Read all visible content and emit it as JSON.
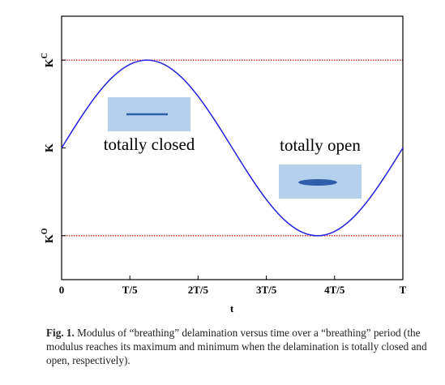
{
  "chart_data": {
    "type": "line",
    "x_label": "t",
    "x": [
      0,
      0.05,
      0.1,
      0.15,
      0.2,
      0.25,
      0.3,
      0.35,
      0.4,
      0.45,
      0.5,
      0.55,
      0.6,
      0.65,
      0.7,
      0.75,
      0.8,
      0.85,
      0.9,
      0.95,
      1
    ],
    "series": [
      {
        "color": "#2222dd",
        "values": [
          0,
          0.309,
          0.588,
          0.809,
          0.951,
          1,
          0.951,
          0.809,
          0.588,
          0.309,
          0,
          -0.309,
          -0.588,
          -0.809,
          -0.951,
          -1,
          -0.951,
          -0.809,
          -0.588,
          -0.309,
          0
        ]
      }
    ],
    "xlim": [
      0,
      1
    ],
    "xticks": [
      0,
      {
        "value": 0.2,
        "label": "T/5"
      },
      {
        "value": 0.4,
        "label": "2T/5"
      },
      {
        "value": 0.6,
        "label": "3T/5"
      },
      {
        "value": 0.8,
        "label": "4T/5"
      },
      {
        "value": 1,
        "label": "T"
      }
    ],
    "ylim": [
      -1.5,
      1.5
    ],
    "yticks": [
      {
        "value": 1,
        "label": "K",
        "superscript": "C"
      },
      {
        "value": 0,
        "label": "K"
      },
      {
        "value": -1,
        "label": "K",
        "superscript": "O"
      }
    ],
    "reference_lines": {
      "color": "#e02020",
      "values": [
        1,
        -1
      ]
    },
    "annotations": [
      "totally closed",
      "totally open"
    ]
  },
  "caption": {
    "label": "Fig. 1.",
    "text": "Modulus of “breathing” delamination versus time over a “breathing” period (the modulus reaches its maximum and minimum when the delamination is totally closed and open, respectively)."
  }
}
